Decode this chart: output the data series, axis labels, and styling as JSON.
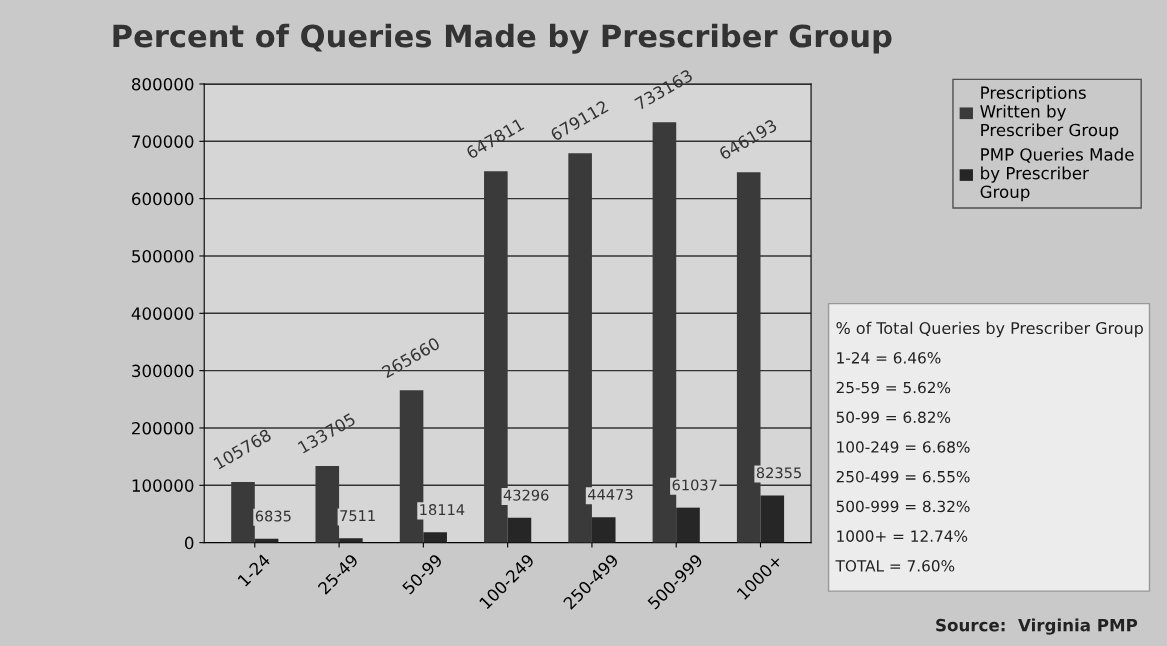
{
  "chart_data": {
    "type": "bar",
    "title": "Percent of Queries Made by Prescriber Group",
    "categories": [
      "1-24",
      "25-49",
      "50-99",
      "100-249",
      "250-499",
      "500-999",
      "1000+"
    ],
    "series": [
      {
        "name": "Prescriptions Written by Prescriber Group",
        "color": "#3a3a3a",
        "values": [
          105768,
          133705,
          265660,
          647811,
          679112,
          733163,
          646193
        ]
      },
      {
        "name": "PMP Queries Made by Prescriber Group",
        "color": "#262626",
        "values": [
          6835,
          7511,
          18114,
          43296,
          44473,
          61037,
          82355
        ]
      }
    ],
    "data_labels": true,
    "ylim": [
      0,
      800000
    ],
    "yticks": [
      0,
      100000,
      200000,
      300000,
      400000,
      500000,
      600000,
      700000,
      800000
    ],
    "grid": "y",
    "legend": "top right",
    "annotations": [
      "% of Total Queries by Prescriber Group",
      "1-24 = 6.46%",
      "25-59 = 5.62%",
      "50-99 = 6.82%",
      "100-249 = 6.68%",
      "250-499 = 6.55%",
      "500-999 = 8.32%",
      "1000+ = 12.74%",
      "TOTAL = 7.60%",
      "Source:  Virginia PMP"
    ]
  }
}
